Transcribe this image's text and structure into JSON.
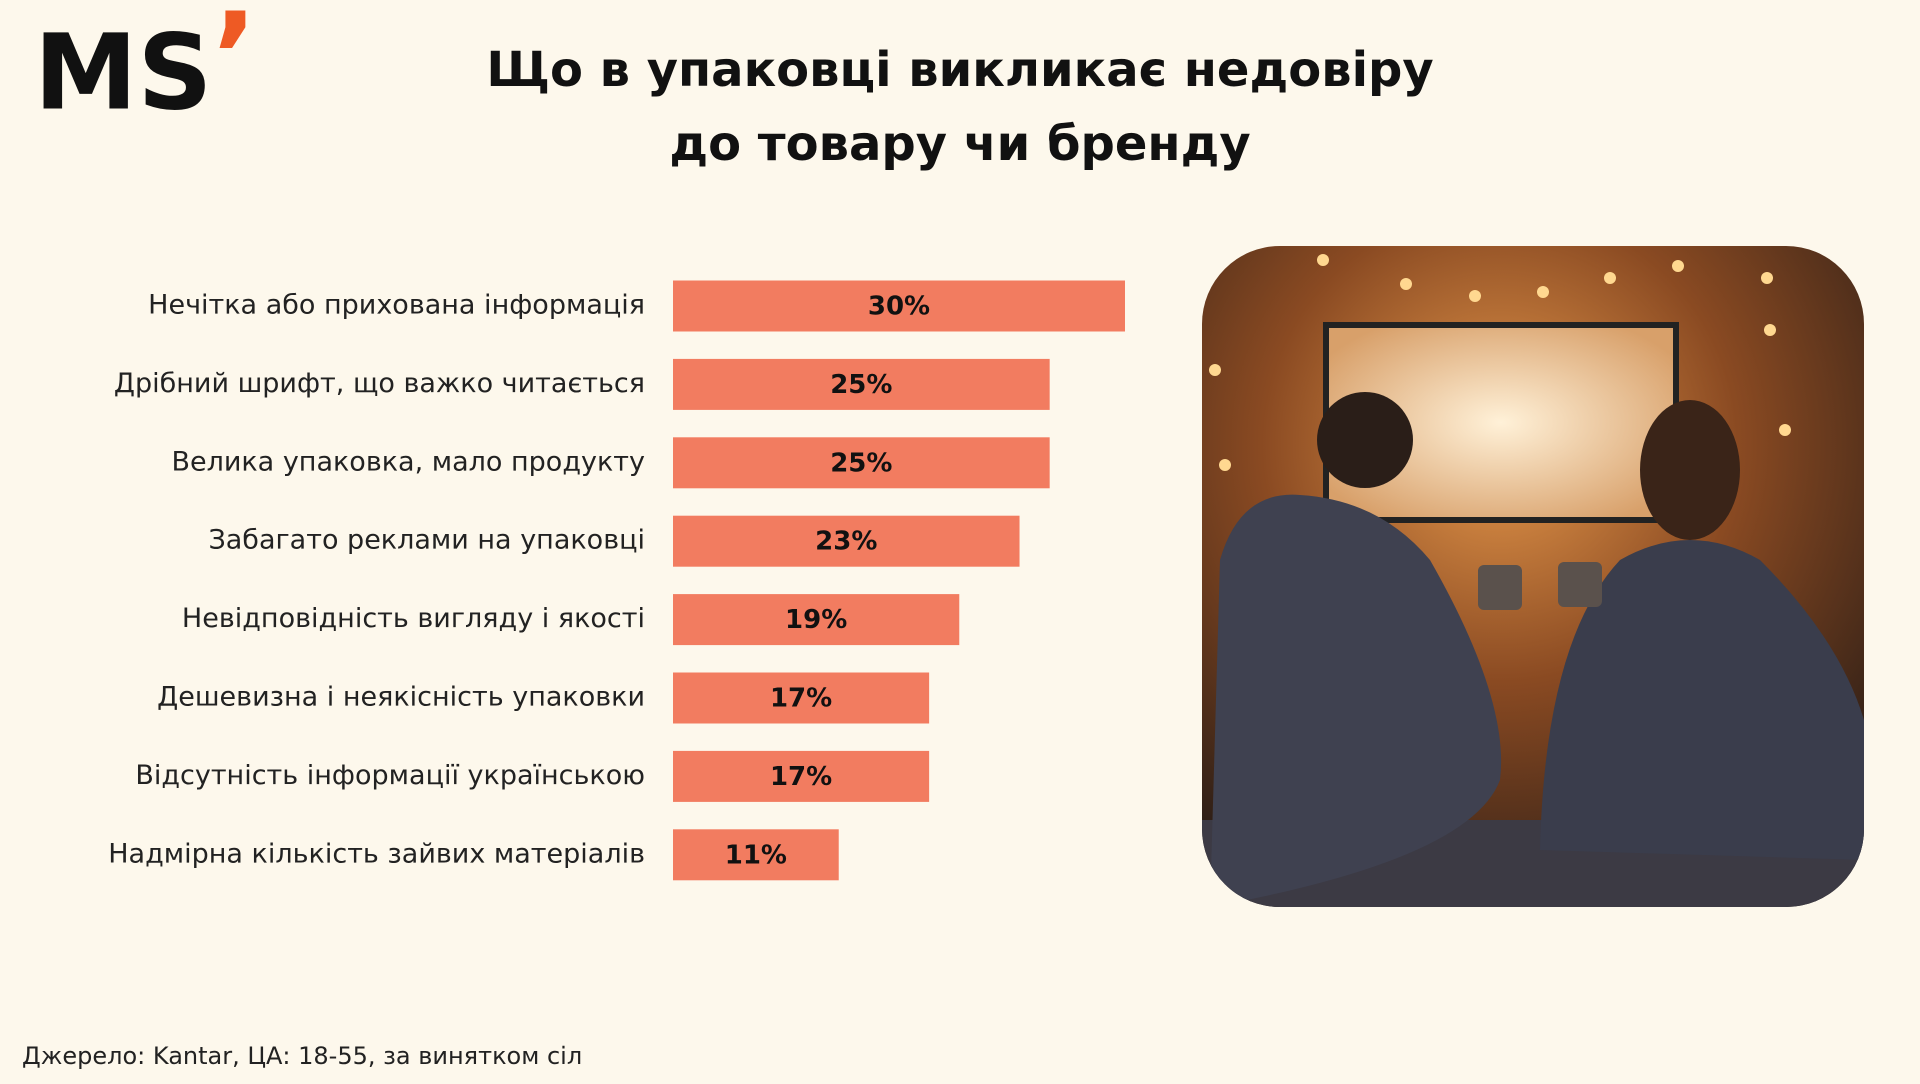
{
  "logo": {
    "text": "MS",
    "mark": "’"
  },
  "chart_data": {
    "type": "bar",
    "orientation": "horizontal",
    "title": "Що в упаковці викликає недовіру\nдо товару чи бренду",
    "categories": [
      "Нечітка або прихована інформація",
      "Дрібний шрифт, що важко читається",
      "Велика упаковка, мало продукту",
      "Забагато реклами на упаковці",
      "Невідповідність вигляду і якості",
      "Дешевизна і неякісність упаковки",
      "Відсутність інформації українською",
      "Надмірна кількість зайвих матеріалів"
    ],
    "values": [
      30,
      25,
      25,
      23,
      19,
      17,
      17,
      11
    ],
    "value_labels": [
      "30%",
      "25%",
      "25%",
      "23%",
      "19%",
      "17%",
      "17%",
      "11%"
    ],
    "color": "#f27c60"
  },
  "source": "Джерело: Kantar, ЦА: 18-55, за винятком сіл"
}
